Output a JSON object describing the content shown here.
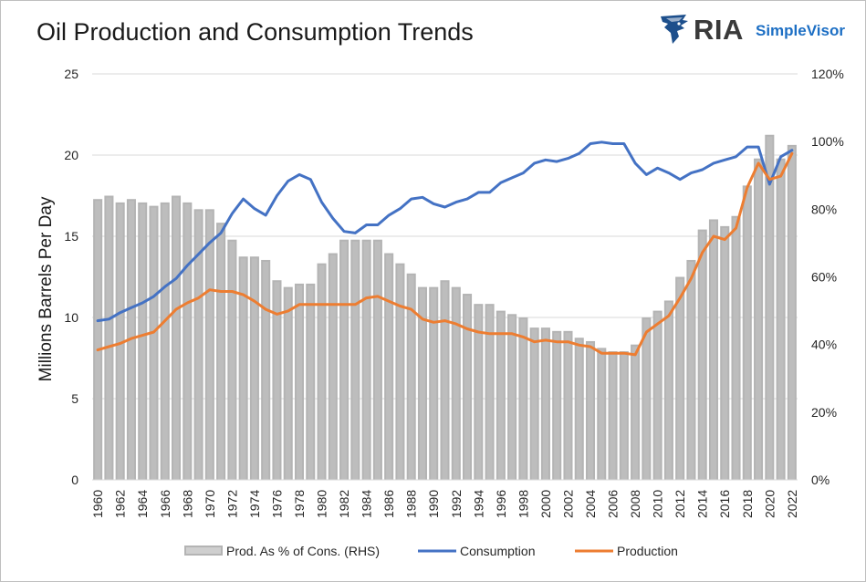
{
  "chart_data": {
    "type": "bar+line",
    "title": "Oil Production and Consumption Trends",
    "ylabel": "Millions Barrels Per Day",
    "y2label": "",
    "ylim": [
      0,
      25
    ],
    "y2lim": [
      0,
      1.2
    ],
    "yticks": [
      "0",
      "5",
      "10",
      "15",
      "20",
      "25"
    ],
    "y2ticks": [
      "0%",
      "20%",
      "40%",
      "60%",
      "80%",
      "100%",
      "120%"
    ],
    "grid": true,
    "legend_position": "bottom",
    "x": [
      1960,
      1961,
      1962,
      1963,
      1964,
      1965,
      1966,
      1967,
      1968,
      1969,
      1970,
      1971,
      1972,
      1973,
      1974,
      1975,
      1976,
      1977,
      1978,
      1979,
      1980,
      1981,
      1982,
      1983,
      1984,
      1985,
      1986,
      1987,
      1988,
      1989,
      1990,
      1991,
      1992,
      1993,
      1994,
      1995,
      1996,
      1997,
      1998,
      1999,
      2000,
      2001,
      2002,
      2003,
      2004,
      2005,
      2006,
      2007,
      2008,
      2009,
      2010,
      2011,
      2012,
      2013,
      2014,
      2015,
      2016,
      2017,
      2018,
      2019,
      2020,
      2021,
      2022
    ],
    "xtick_labels": [
      "1960",
      "1962",
      "1964",
      "1966",
      "1968",
      "1970",
      "1972",
      "1974",
      "1976",
      "1978",
      "1980",
      "1982",
      "1984",
      "1986",
      "1988",
      "1990",
      "1992",
      "1994",
      "1996",
      "1998",
      "2000",
      "2002",
      "2004",
      "2006",
      "2008",
      "2010",
      "2012",
      "2014",
      "2016",
      "2018",
      "2020",
      "2022"
    ],
    "series": [
      {
        "name": "Prod. As % of Cons. (RHS)",
        "type": "bar",
        "axis": "right",
        "color": "#b4b4b4",
        "values": [
          0.83,
          0.84,
          0.82,
          0.83,
          0.82,
          0.81,
          0.82,
          0.84,
          0.82,
          0.8,
          0.8,
          0.76,
          0.71,
          0.66,
          0.66,
          0.65,
          0.59,
          0.57,
          0.58,
          0.58,
          0.64,
          0.67,
          0.71,
          0.71,
          0.71,
          0.71,
          0.67,
          0.64,
          0.61,
          0.57,
          0.57,
          0.59,
          0.57,
          0.55,
          0.52,
          0.52,
          0.5,
          0.49,
          0.48,
          0.45,
          0.45,
          0.44,
          0.44,
          0.42,
          0.41,
          0.39,
          0.38,
          0.38,
          0.4,
          0.48,
          0.5,
          0.53,
          0.6,
          0.65,
          0.74,
          0.77,
          0.75,
          0.78,
          0.87,
          0.95,
          1.02,
          0.95,
          0.99
        ]
      },
      {
        "name": "Consumption",
        "type": "line",
        "axis": "left",
        "color": "#4472c4",
        "values": [
          9.8,
          9.9,
          10.3,
          10.6,
          10.9,
          11.3,
          11.9,
          12.4,
          13.2,
          13.9,
          14.6,
          15.2,
          16.4,
          17.3,
          16.7,
          16.3,
          17.5,
          18.4,
          18.8,
          18.5,
          17.1,
          16.1,
          15.3,
          15.2,
          15.7,
          15.7,
          16.3,
          16.7,
          17.3,
          17.4,
          17.0,
          16.8,
          17.1,
          17.3,
          17.7,
          17.7,
          18.3,
          18.6,
          18.9,
          19.5,
          19.7,
          19.6,
          19.8,
          20.1,
          20.7,
          20.8,
          20.7,
          20.7,
          19.5,
          18.8,
          19.2,
          18.9,
          18.5,
          18.9,
          19.1,
          19.5,
          19.7,
          19.9,
          20.5,
          20.5,
          18.2,
          19.9,
          20.3
        ]
      },
      {
        "name": "Production",
        "type": "line",
        "axis": "left",
        "color": "#ed7d31",
        "values": [
          8.0,
          8.2,
          8.4,
          8.7,
          8.9,
          9.1,
          9.8,
          10.5,
          10.9,
          11.2,
          11.7,
          11.6,
          11.6,
          11.4,
          11.0,
          10.5,
          10.2,
          10.4,
          10.8,
          10.8,
          10.8,
          10.8,
          10.8,
          10.8,
          11.2,
          11.3,
          11.0,
          10.7,
          10.5,
          9.9,
          9.7,
          9.8,
          9.6,
          9.3,
          9.1,
          9.0,
          9.0,
          9.0,
          8.8,
          8.5,
          8.6,
          8.5,
          8.5,
          8.3,
          8.2,
          7.8,
          7.8,
          7.8,
          7.7,
          9.1,
          9.6,
          10.1,
          11.2,
          12.4,
          14.0,
          15.0,
          14.8,
          15.5,
          18.0,
          19.5,
          18.5,
          18.7,
          20.1
        ]
      }
    ]
  },
  "logo": {
    "brand": "RIA",
    "product": "SimpleVisor"
  }
}
